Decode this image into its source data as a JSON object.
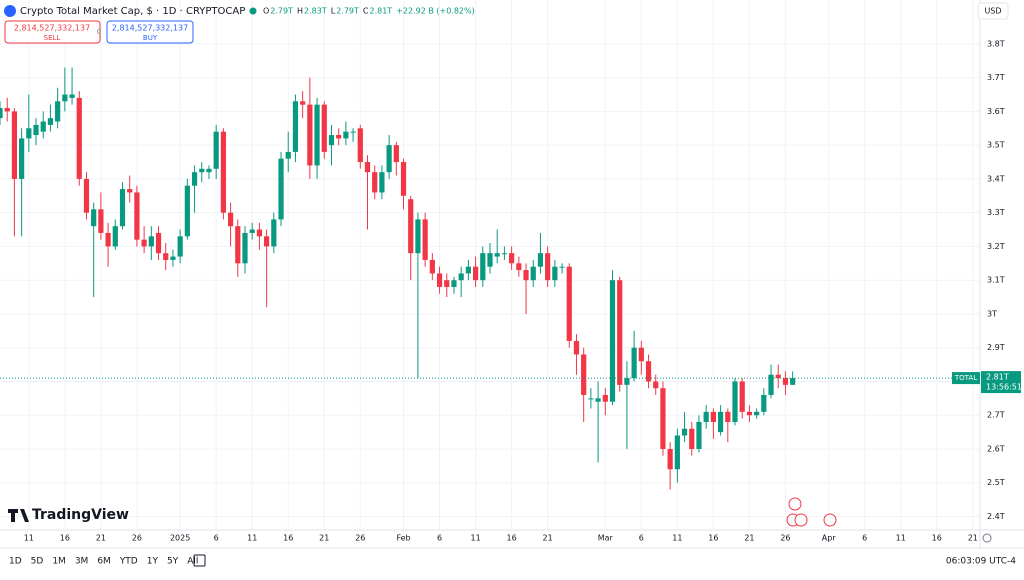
{
  "header": {
    "title": "Crypto Total Market Cap, $ · 1D · CRYPTOCAP",
    "ohlc": [
      {
        "k": "O",
        "v": "2.79T"
      },
      {
        "k": "H",
        "v": "2.83T"
      },
      {
        "k": "L",
        "v": "2.79T"
      },
      {
        "k": "C",
        "v": "2.81T"
      }
    ],
    "change": "+22.92 B (+0.82%)",
    "sell_price": "2,814,527,332,137",
    "sell_label": "SELL",
    "spread": "0",
    "buy_price": "2,814,527,332,137",
    "buy_label": "BUY",
    "currency": "USD",
    "logo": "TradingView"
  },
  "toolbar": {
    "ranges": [
      "1D",
      "5D",
      "1M",
      "3M",
      "6M",
      "YTD",
      "1Y",
      "5Y",
      "All"
    ],
    "clock": "06:03:09 UTC-4"
  },
  "chart_data": {
    "type": "candlestick",
    "up_color": "#089981",
    "down_color": "#f23645",
    "grid": true,
    "xlim": [
      0,
      136
    ],
    "ylim": [
      2.36,
      3.93
    ],
    "yticks": [
      {
        "value": 2.4,
        "label": "2.4T"
      },
      {
        "value": 2.5,
        "label": "2.5T"
      },
      {
        "value": 2.6,
        "label": "2.6T"
      },
      {
        "value": 2.7,
        "label": "2.7T"
      },
      {
        "value": 2.8,
        "label": "2.8T"
      },
      {
        "value": 2.9,
        "label": "2.9T"
      },
      {
        "value": 3,
        "label": "3T"
      },
      {
        "value": 3.1,
        "label": "3.1T"
      },
      {
        "value": 3.2,
        "label": "3.2T"
      },
      {
        "value": 3.3,
        "label": "3.3T"
      },
      {
        "value": 3.4,
        "label": "3.4T"
      },
      {
        "value": 3.5,
        "label": "3.5T"
      },
      {
        "value": 3.6,
        "label": "3.6T"
      },
      {
        "value": 3.7,
        "label": "3.7T"
      },
      {
        "value": 3.8,
        "label": "3.8T"
      }
    ],
    "xticks": [
      {
        "value": 4,
        "label": "11"
      },
      {
        "value": 9,
        "label": "16"
      },
      {
        "value": 14,
        "label": "21"
      },
      {
        "value": 19,
        "label": "26"
      },
      {
        "value": 25,
        "label": "2025"
      },
      {
        "value": 30,
        "label": "6"
      },
      {
        "value": 35,
        "label": "11"
      },
      {
        "value": 40,
        "label": "16"
      },
      {
        "value": 45,
        "label": "21"
      },
      {
        "value": 50,
        "label": "26"
      },
      {
        "value": 56,
        "label": "Feb"
      },
      {
        "value": 61,
        "label": "6"
      },
      {
        "value": 66,
        "label": "11"
      },
      {
        "value": 71,
        "label": "16"
      },
      {
        "value": 76,
        "label": "21"
      },
      {
        "value": 84,
        "label": "Mar"
      },
      {
        "value": 89,
        "label": "6"
      },
      {
        "value": 94,
        "label": "11"
      },
      {
        "value": 99,
        "label": "16"
      },
      {
        "value": 104,
        "label": "21"
      },
      {
        "value": 109,
        "label": "26"
      },
      {
        "value": 115,
        "label": "Apr"
      },
      {
        "value": 120,
        "label": "6"
      },
      {
        "value": 125,
        "label": "11"
      },
      {
        "value": 130,
        "label": "16"
      },
      {
        "value": 135,
        "label": "21"
      }
    ],
    "last_price": {
      "value": 2.81,
      "label": "2.81T"
    },
    "symbol_tag": "TOTAL",
    "countdown": "13:56:51",
    "x": [
      0,
      1,
      2,
      3,
      4,
      5,
      6,
      7,
      8,
      9,
      10,
      11,
      12,
      13,
      14,
      15,
      16,
      17,
      18,
      19,
      20,
      21,
      22,
      23,
      24,
      25,
      26,
      27,
      28,
      29,
      30,
      31,
      32,
      33,
      34,
      35,
      36,
      37,
      38,
      39,
      40,
      41,
      42,
      43,
      44,
      45,
      46,
      47,
      48,
      49,
      50,
      51,
      52,
      53,
      54,
      55,
      56,
      57,
      58,
      59,
      60,
      61,
      62,
      63,
      64,
      65,
      66,
      67,
      68,
      69,
      70,
      71,
      72,
      73,
      74,
      75,
      76,
      77,
      78,
      79,
      80,
      81,
      82,
      83,
      84,
      85,
      86,
      87,
      88,
      89,
      90,
      91,
      92,
      93,
      94,
      95,
      96,
      97,
      98,
      99,
      100,
      101,
      102,
      103,
      104,
      105,
      106,
      107,
      108,
      109,
      110
    ],
    "open": [
      3.58,
      3.61,
      3.6,
      3.4,
      3.52,
      3.53,
      3.54,
      3.56,
      3.57,
      3.63,
      3.64,
      3.64,
      3.4,
      3.26,
      3.31,
      3.24,
      3.2,
      3.26,
      3.37,
      3.36,
      3.22,
      3.2,
      3.24,
      3.18,
      3.16,
      3.17,
      3.23,
      3.38,
      3.42,
      3.42,
      3.43,
      3.54,
      3.3,
      3.26,
      3.15,
      3.24,
      3.25,
      3.23,
      3.2,
      3.28,
      3.46,
      3.48,
      3.63,
      3.62,
      3.44,
      3.62,
      3.5,
      3.53,
      3.52,
      3.54,
      3.55,
      3.45,
      3.42,
      3.36,
      3.42,
      3.5,
      3.45,
      3.34,
      3.18,
      3.28,
      3.16,
      3.12,
      3.1,
      3.08,
      3.1,
      3.12,
      3.14,
      3.1,
      3.14,
      3.17,
      3.18,
      3.18,
      3.15,
      3.13,
      3.1,
      3.14,
      3.18,
      3.1,
      3.14,
      3.14,
      2.92,
      2.88,
      2.75,
      2.74,
      2.76,
      2.74,
      3.1,
      2.79,
      2.81,
      2.9,
      2.86,
      2.8,
      2.78,
      2.6,
      2.54,
      2.64,
      2.66,
      2.6,
      2.68,
      2.71,
      2.65,
      2.71,
      2.68,
      2.8,
      2.71,
      2.7,
      2.71,
      2.76,
      2.82,
      2.81,
      2.79
    ],
    "high": [
      3.63,
      3.64,
      3.61,
      3.55,
      3.65,
      3.58,
      3.6,
      3.62,
      3.67,
      3.73,
      3.73,
      3.66,
      3.42,
      3.33,
      3.36,
      3.27,
      3.28,
      3.39,
      3.41,
      3.38,
      3.26,
      3.26,
      3.26,
      3.21,
      3.19,
      3.25,
      3.4,
      3.44,
      3.45,
      3.44,
      3.56,
      3.55,
      3.33,
      3.28,
      3.26,
      3.27,
      3.27,
      3.25,
      3.3,
      3.48,
      3.54,
      3.65,
      3.66,
      3.7,
      3.64,
      3.63,
      3.56,
      3.55,
      3.57,
      3.55,
      3.56,
      3.47,
      3.44,
      3.44,
      3.53,
      3.51,
      3.46,
      3.35,
      3.3,
      3.3,
      3.18,
      3.14,
      3.12,
      3.11,
      3.14,
      3.16,
      3.17,
      3.2,
      3.21,
      3.25,
      3.2,
      3.2,
      3.17,
      3.15,
      3.16,
      3.24,
      3.2,
      3.16,
      3.15,
      3.15,
      2.94,
      2.9,
      2.78,
      2.8,
      2.78,
      3.13,
      3.11,
      2.86,
      2.95,
      2.92,
      2.88,
      2.82,
      2.8,
      2.62,
      2.66,
      2.71,
      2.68,
      2.7,
      2.73,
      2.72,
      2.73,
      2.72,
      2.81,
      2.81,
      2.73,
      2.72,
      2.78,
      2.85,
      2.85,
      2.83,
      2.83
    ],
    "low": [
      3.56,
      3.57,
      3.23,
      3.23,
      3.48,
      3.5,
      3.52,
      3.54,
      3.55,
      3.6,
      3.62,
      3.38,
      3.28,
      3.05,
      3.22,
      3.14,
      3.19,
      3.25,
      3.33,
      3.2,
      3.18,
      3.16,
      3.16,
      3.13,
      3.14,
      3.15,
      3.22,
      3.3,
      3.39,
      3.4,
      3.4,
      3.28,
      3.2,
      3.11,
      3.12,
      3.22,
      3.19,
      3.02,
      3.18,
      3.26,
      3.42,
      3.45,
      3.58,
      3.4,
      3.4,
      3.46,
      3.44,
      3.5,
      3.5,
      3.51,
      3.43,
      3.25,
      3.34,
      3.34,
      3.4,
      3.41,
      3.31,
      3.1,
      2.81,
      3.14,
      3.1,
      3.06,
      3.05,
      3.06,
      3.05,
      3.1,
      3.08,
      3.08,
      3.12,
      3.15,
      3.16,
      3.13,
      3.11,
      3,
      3.08,
      3.12,
      3.08,
      3.08,
      3.12,
      2.9,
      2.82,
      2.68,
      2.72,
      2.56,
      2.7,
      2.73,
      2.77,
      2.6,
      2.8,
      2.82,
      2.78,
      2.76,
      2.58,
      2.48,
      2.5,
      2.62,
      2.58,
      2.59,
      2.66,
      2.63,
      2.64,
      2.62,
      2.67,
      2.69,
      2.68,
      2.69,
      2.7,
      2.75,
      2.78,
      2.76,
      2.79
    ],
    "close": [
      3.61,
      3.6,
      3.4,
      3.52,
      3.55,
      3.56,
      3.57,
      3.58,
      3.63,
      3.65,
      3.65,
      3.4,
      3.3,
      3.31,
      3.24,
      3.2,
      3.26,
      3.37,
      3.36,
      3.22,
      3.2,
      3.23,
      3.18,
      3.16,
      3.17,
      3.23,
      3.38,
      3.42,
      3.43,
      3.43,
      3.54,
      3.3,
      3.26,
      3.15,
      3.24,
      3.25,
      3.23,
      3.2,
      3.28,
      3.46,
      3.48,
      3.63,
      3.62,
      3.44,
      3.62,
      3.48,
      3.53,
      3.52,
      3.54,
      3.54,
      3.45,
      3.42,
      3.36,
      3.42,
      3.5,
      3.45,
      3.35,
      3.18,
      3.28,
      3.16,
      3.12,
      3.08,
      3.08,
      3.1,
      3.12,
      3.14,
      3.1,
      3.18,
      3.18,
      3.18,
      3.18,
      3.15,
      3.13,
      3.1,
      3.14,
      3.18,
      3.1,
      3.14,
      3.14,
      2.92,
      2.88,
      2.76,
      2.75,
      2.75,
      2.74,
      3.1,
      2.79,
      2.81,
      2.9,
      2.86,
      2.8,
      2.78,
      2.6,
      2.54,
      2.64,
      2.66,
      2.6,
      2.68,
      2.71,
      2.68,
      2.71,
      2.68,
      2.8,
      2.71,
      2.7,
      2.71,
      2.76,
      2.82,
      2.81,
      2.79,
      2.81
    ]
  }
}
